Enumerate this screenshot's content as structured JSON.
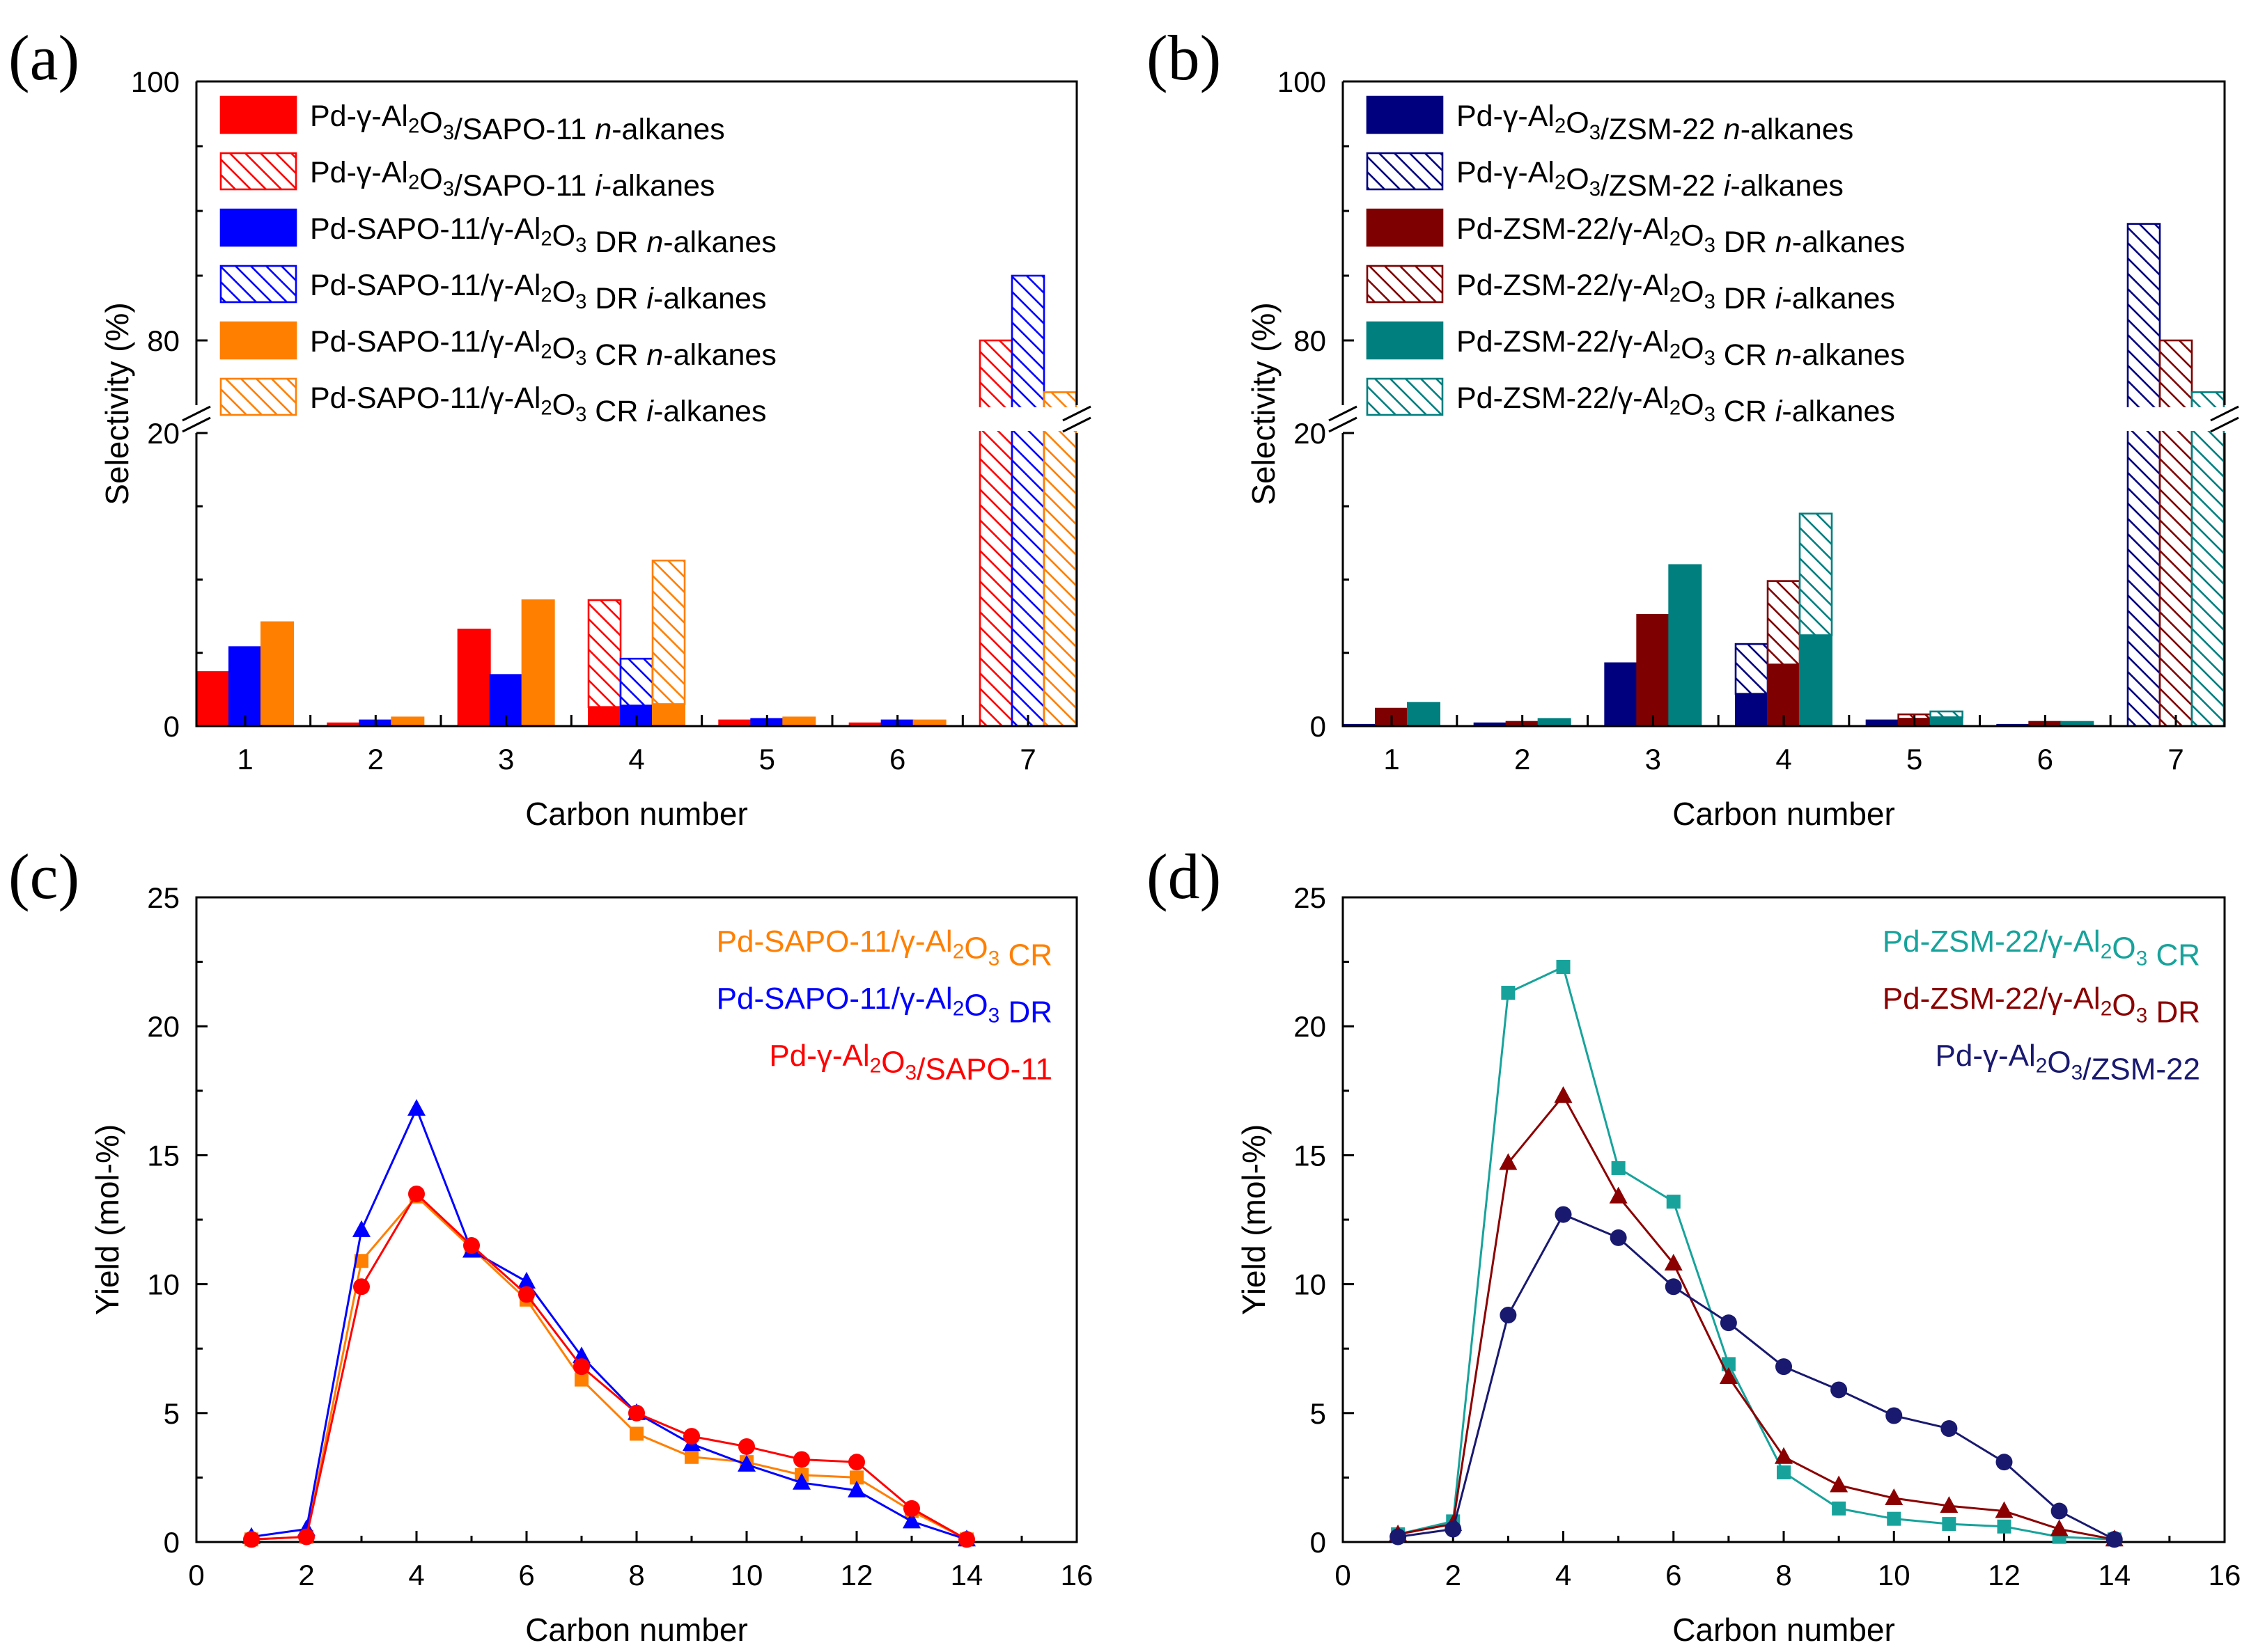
{
  "chart_data": [
    {
      "type": "bar",
      "panel_label": "(a)",
      "xlabel": "Carbon number",
      "ylabel": "Selectivity (%)",
      "categories": [
        "1",
        "2",
        "3",
        "4",
        "5",
        "6",
        "7"
      ],
      "ylim_lower": [
        0,
        20
      ],
      "ylim_upper": [
        75,
        100
      ],
      "yticks_lower": [
        "0",
        "20"
      ],
      "yticks_upper": [
        "80",
        "100"
      ],
      "axis_break": true,
      "legend_position": "top-left",
      "series": [
        {
          "name": "Pd-γ-Al2O3/SAPO-11 n-alkanes",
          "catalyst": "Pd-γ-Al2O3/SAPO-11",
          "fraction": "n-alkanes",
          "color": "#ff0000",
          "hatched": false,
          "values": [
            3.7,
            0.2,
            6.6,
            1.3,
            0.4,
            0.2,
            0
          ]
        },
        {
          "name": "Pd-γ-Al2O3/SAPO-11 i-alkanes",
          "catalyst": "Pd-γ-Al2O3/SAPO-11",
          "fraction": "i-alkanes",
          "color": "#ff0000",
          "hatched": true,
          "values": [
            0,
            0,
            0,
            7.3,
            0,
            0,
            80.0
          ]
        },
        {
          "name": "Pd-SAPO-11/γ-Al2O3 DR n-alkanes",
          "catalyst": "Pd-SAPO-11/γ-Al2O3 DR",
          "fraction": "n-alkanes",
          "color": "#0000ff",
          "hatched": false,
          "values": [
            5.4,
            0.4,
            3.5,
            1.4,
            0.5,
            0.4,
            0
          ]
        },
        {
          "name": "Pd-SAPO-11/γ-Al2O3 DR i-alkanes",
          "catalyst": "Pd-SAPO-11/γ-Al2O3 DR",
          "fraction": "i-alkanes",
          "color": "#0000ff",
          "hatched": true,
          "values": [
            0,
            0,
            0,
            3.2,
            0,
            0,
            85.0
          ]
        },
        {
          "name": "Pd-SAPO-11/γ-Al2O3 CR n-alkanes",
          "catalyst": "Pd-SAPO-11/γ-Al2O3 CR",
          "fraction": "n-alkanes",
          "color": "#ff7f00",
          "hatched": false,
          "values": [
            7.1,
            0.6,
            8.6,
            1.5,
            0.6,
            0.4,
            0
          ]
        },
        {
          "name": "Pd-SAPO-11/γ-Al2O3 CR i-alkanes",
          "catalyst": "Pd-SAPO-11/γ-Al2O3 CR",
          "fraction": "i-alkanes",
          "color": "#ff7f00",
          "hatched": true,
          "values": [
            0,
            0,
            0,
            9.8,
            0,
            0,
            76.0
          ]
        }
      ]
    },
    {
      "type": "bar",
      "panel_label": "(b)",
      "xlabel": "Carbon number",
      "ylabel": "Selectivity (%)",
      "categories": [
        "1",
        "2",
        "3",
        "4",
        "5",
        "6",
        "7"
      ],
      "ylim_lower": [
        0,
        20
      ],
      "ylim_upper": [
        75,
        100
      ],
      "yticks_lower": [
        "0",
        "20"
      ],
      "yticks_upper": [
        "80",
        "100"
      ],
      "axis_break": true,
      "legend_position": "top-left",
      "series": [
        {
          "name": "Pd-γ-Al2O3/ZSM-22 n-alkanes",
          "catalyst": "Pd-γ-Al2O3/ZSM-22",
          "fraction": "n-alkanes",
          "color": "#00007f",
          "hatched": false,
          "values": [
            0.1,
            0.2,
            4.3,
            2.2,
            0.4,
            0.1,
            0
          ]
        },
        {
          "name": "Pd-γ-Al2O3/ZSM-22 i-alkanes",
          "catalyst": "Pd-γ-Al2O3/ZSM-22",
          "fraction": "i-alkanes",
          "color": "#00007f",
          "hatched": true,
          "values": [
            0,
            0,
            0,
            3.4,
            0,
            0,
            89.0
          ]
        },
        {
          "name": "Pd-ZSM-22/γ-Al2O3 DR n-alkanes",
          "catalyst": "Pd-ZSM-22/γ-Al2O3 DR",
          "fraction": "n-alkanes",
          "color": "#7f0000",
          "hatched": false,
          "values": [
            1.2,
            0.3,
            7.6,
            4.2,
            0.5,
            0.3,
            0
          ]
        },
        {
          "name": "Pd-ZSM-22/γ-Al2O3 DR i-alkanes",
          "catalyst": "Pd-ZSM-22/γ-Al2O3 DR",
          "fraction": "i-alkanes",
          "color": "#7f0000",
          "hatched": true,
          "values": [
            0,
            0,
            0,
            5.7,
            0.3,
            0,
            80.0
          ]
        },
        {
          "name": "Pd-ZSM-22/γ-Al2O3 CR n-alkanes",
          "catalyst": "Pd-ZSM-22/γ-Al2O3 CR",
          "fraction": "n-alkanes",
          "color": "#007f7f",
          "hatched": false,
          "values": [
            1.6,
            0.5,
            11.0,
            6.2,
            0.6,
            0.3,
            0
          ]
        },
        {
          "name": "Pd-ZSM-22/γ-Al2O3 CR i-alkanes",
          "catalyst": "Pd-ZSM-22/γ-Al2O3 CR",
          "fraction": "i-alkanes",
          "color": "#007f7f",
          "hatched": true,
          "values": [
            0,
            0,
            0,
            8.3,
            0.4,
            0,
            76.0
          ]
        }
      ]
    },
    {
      "type": "line",
      "panel_label": "(c)",
      "xlabel": "Carbon number",
      "ylabel": "Yield (mol-%)",
      "xlim": [
        0,
        16
      ],
      "ylim": [
        0,
        25
      ],
      "xticks": [
        0,
        2,
        4,
        6,
        8,
        10,
        12,
        14,
        16
      ],
      "yticks": [
        0,
        5,
        10,
        15,
        20,
        25
      ],
      "legend_position": "top-right",
      "x": [
        1,
        2,
        3,
        4,
        5,
        6,
        7,
        8,
        9,
        10,
        11,
        12,
        13,
        14
      ],
      "series": [
        {
          "name": "Pd-SAPO-11/γ-Al2O3 CR",
          "color": "#ff7f00",
          "marker": "square",
          "values": [
            0.1,
            0.2,
            10.9,
            13.4,
            11.4,
            9.4,
            6.3,
            4.2,
            3.3,
            3.1,
            2.6,
            2.5,
            1.2,
            0.1
          ]
        },
        {
          "name": "Pd-SAPO-11/γ-Al2O3 DR",
          "color": "#0000ff",
          "marker": "triangle",
          "values": [
            0.2,
            0.5,
            12.1,
            16.8,
            11.3,
            10.1,
            7.2,
            5.0,
            3.8,
            3.0,
            2.3,
            2.0,
            0.8,
            0.1
          ]
        },
        {
          "name": "Pd-γ-Al2O3/SAPO-11",
          "color": "#ff0000",
          "marker": "circle",
          "values": [
            0.1,
            0.2,
            9.9,
            13.5,
            11.5,
            9.6,
            6.8,
            5.0,
            4.1,
            3.7,
            3.2,
            3.1,
            1.3,
            0.1
          ]
        }
      ]
    },
    {
      "type": "line",
      "panel_label": "(d)",
      "xlabel": "Carbon number",
      "ylabel": "Yield (mol-%)",
      "xlim": [
        0,
        16
      ],
      "ylim": [
        0,
        25
      ],
      "xticks": [
        0,
        2,
        4,
        6,
        8,
        10,
        12,
        14,
        16
      ],
      "yticks": [
        0,
        5,
        10,
        15,
        20,
        25
      ],
      "legend_position": "top-right",
      "x": [
        1,
        2,
        3,
        4,
        5,
        6,
        7,
        8,
        9,
        10,
        11,
        12,
        13,
        14
      ],
      "series": [
        {
          "name": "Pd-ZSM-22/γ-Al2O3 CR",
          "color": "#17a39b",
          "marker": "square",
          "values": [
            0.3,
            0.8,
            21.3,
            22.3,
            14.5,
            13.2,
            6.9,
            2.7,
            1.3,
            0.9,
            0.7,
            0.6,
            0.2,
            0.1
          ]
        },
        {
          "name": "Pd-ZSM-22/γ-Al2O3 DR",
          "color": "#8b0000",
          "marker": "triangle",
          "values": [
            0.3,
            0.7,
            14.7,
            17.3,
            13.4,
            10.8,
            6.4,
            3.3,
            2.2,
            1.7,
            1.4,
            1.2,
            0.5,
            0.1
          ]
        },
        {
          "name": "Pd-γ-Al2O3/ZSM-22",
          "color": "#191970",
          "marker": "circle",
          "values": [
            0.2,
            0.5,
            8.8,
            12.7,
            11.8,
            9.9,
            8.5,
            6.8,
            5.9,
            4.9,
            4.4,
            3.1,
            1.2,
            0.1
          ]
        }
      ]
    }
  ]
}
